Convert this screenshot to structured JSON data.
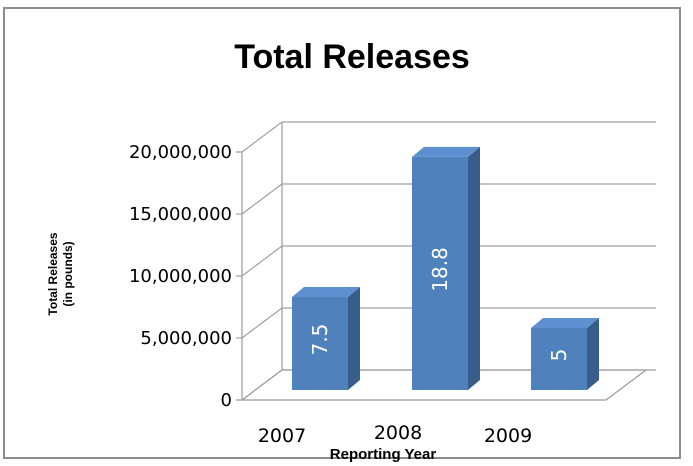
{
  "chart_data": {
    "type": "bar",
    "title": "Total Releases",
    "xlabel": "Reporting Year",
    "ylabel": [
      "Total  Releases",
      "(in pounds)"
    ],
    "categories": [
      "2007",
      "2008",
      "2009"
    ],
    "values": [
      7500000,
      18800000,
      5000000
    ],
    "data_labels": [
      "7.5",
      "18.8",
      "5"
    ],
    "yticks": [
      "0",
      "5,000,000",
      "10,000,000",
      "15,000,000",
      "20,000,000"
    ],
    "ylim": [
      0,
      20000000
    ],
    "grid": true,
    "legend": "none",
    "bar_color": "#4f81bd",
    "bar_side_color": "#385d8a",
    "bar_top_color": "#5e8fd0"
  }
}
